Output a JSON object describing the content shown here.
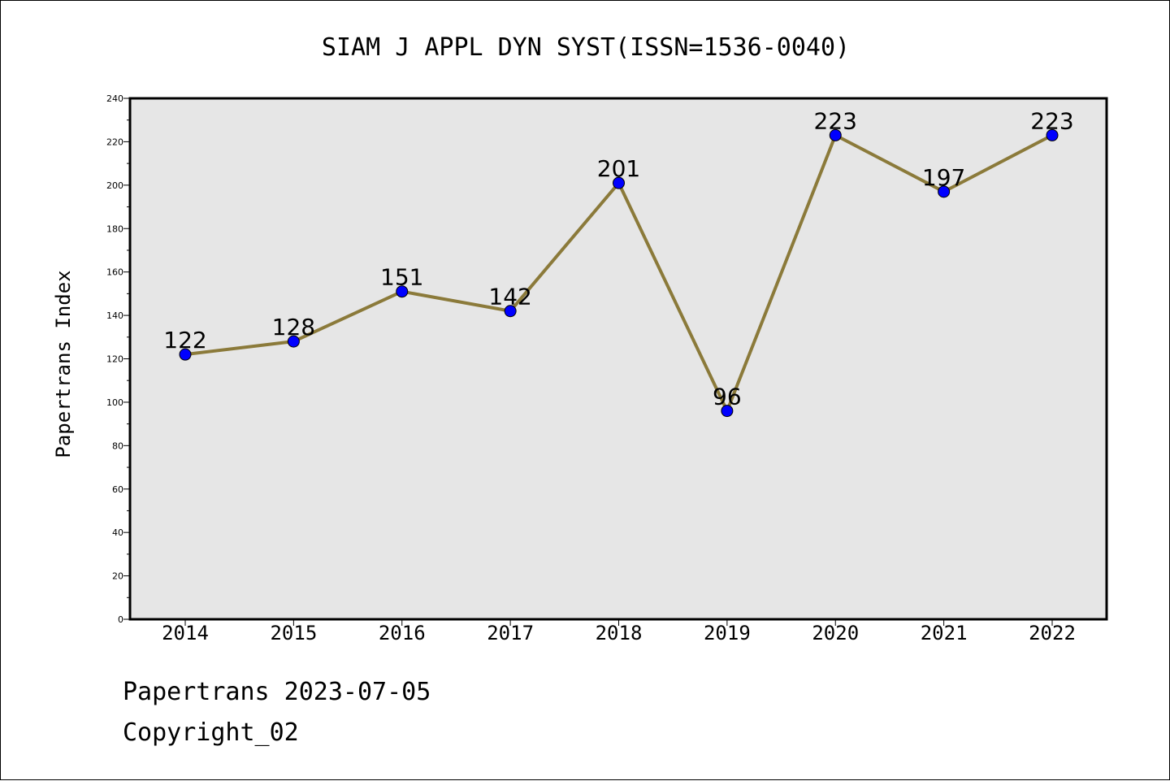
{
  "chart_data": {
    "type": "line",
    "title": "SIAM J APPL DYN SYST(ISSN=1536-0040)",
    "xlabel": "",
    "ylabel": "Papertrans Index",
    "categories": [
      "2014",
      "2015",
      "2016",
      "2017",
      "2018",
      "2019",
      "2020",
      "2021",
      "2022"
    ],
    "series": [
      {
        "values": [
          122,
          128,
          151,
          142,
          201,
          96,
          223,
          197,
          223
        ]
      }
    ],
    "ylim": [
      0,
      240
    ],
    "yticks": [
      0,
      20,
      40,
      60,
      80,
      100,
      120,
      140,
      160,
      180,
      200,
      220,
      240
    ],
    "grid": false,
    "legend": "none",
    "colors": {
      "line": "#8b7a3a",
      "marker": "#0000ff",
      "plot_background": "#e6e6e6"
    }
  },
  "footer": {
    "date_line": "Papertrans 2023-07-05",
    "copyright_line": "Copyright_02"
  }
}
